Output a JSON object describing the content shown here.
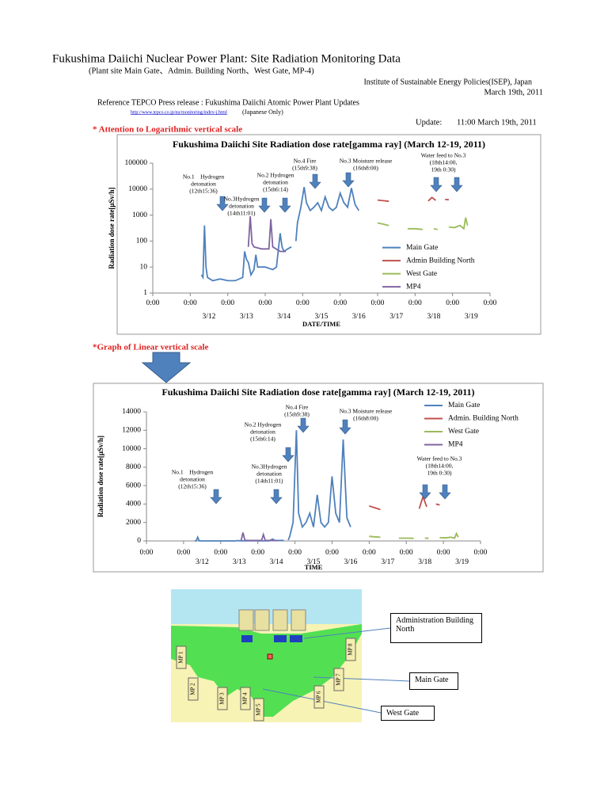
{
  "header": {
    "title": "Fukushima Daiichi Nuclear Power Plant: Site Radiation Monitoring Data",
    "subtitle": "(Plant site Main Gate、Admin. Building North、West Gate, MP-4)",
    "institute": "Institute of Sustainable Energy Policies(ISEP), Japan",
    "date": "March 19th, 2011",
    "reference": "Reference TEPCO Press release : Fukushima Daiichi Atomic Power Plant Updates",
    "link": "http://www.tepco.co.jp/nu/monitoring/index-j.html",
    "japanese_only": "(Japanese Only)",
    "update_label": "Update:",
    "update_time": "11:00 March 19th, 2011"
  },
  "notes": {
    "log_scale": "* Attention to Logarithmic vertical scale",
    "linear_scale": "*Graph of Linear vertical scale"
  },
  "chart_data": [
    {
      "type": "line",
      "title": "Fukushima Daiichi  Site Radiation dose rate[gamma ray] (March 12-19, 2011)",
      "y_label": "Radiation dose rate[μSv/h]",
      "x_label": "DATE/TIME",
      "log_y": true,
      "legend": "right",
      "xlim": [
        11,
        20
      ],
      "xticks": [
        {
          "value": 11,
          "label": "0:00"
        },
        {
          "value": 12,
          "label": "0:00"
        },
        {
          "value": 13,
          "label": "0:00"
        },
        {
          "value": 14,
          "label": "0:00"
        },
        {
          "value": 15,
          "label": "0:00"
        },
        {
          "value": 16,
          "label": "0:00"
        },
        {
          "value": 17,
          "label": "0:00"
        },
        {
          "value": 18,
          "label": "0:00"
        },
        {
          "value": 19,
          "label": "0:00"
        },
        {
          "value": 20,
          "label": "0:00"
        }
      ],
      "date_labels": [
        {
          "value": 12.5,
          "label": "3/12"
        },
        {
          "value": 13.5,
          "label": "3/13"
        },
        {
          "value": 14.5,
          "label": "3/14"
        },
        {
          "value": 15.5,
          "label": "3/15"
        },
        {
          "value": 16.5,
          "label": "3/16"
        },
        {
          "value": 17.5,
          "label": "3/17"
        },
        {
          "value": 18.5,
          "label": "3/18"
        },
        {
          "value": 19.5,
          "label": "3/19"
        }
      ],
      "ylim": [
        1,
        100000
      ],
      "yticks": [
        1,
        10,
        100,
        1000,
        10000,
        100000
      ],
      "annotations": [
        {
          "lines": [
            "No.1　Hydrogen",
            "detonation",
            "(12th15:36)"
          ]
        },
        {
          "lines": [
            "No.2 Hydrogen",
            "detonation",
            "(15th6:14)"
          ]
        },
        {
          "lines": [
            "No.3Hydrogen",
            "detonation",
            "(14th11:01)"
          ]
        },
        {
          "lines": [
            "No.4 Fire",
            "(15th9:38)"
          ]
        },
        {
          "lines": [
            "No.3 Moisture release",
            "(16th8:00)"
          ]
        },
        {
          "lines": [
            "Water feed to No.3",
            "(18th14:00,",
            "19th 0:30)"
          ]
        }
      ],
      "series": [
        {
          "name": "Main Gate",
          "color": "#4f81bd",
          "x": [
            12.3,
            12.34,
            12.38,
            12.42,
            12.46,
            12.6,
            12.8,
            13.0,
            13.2,
            13.4,
            13.45,
            13.5,
            13.55,
            13.62,
            13.7,
            13.75,
            13.8,
            14.0,
            14.2,
            14.3,
            14.4,
            14.45,
            14.5,
            14.6,
            14.7,
            14.76,
            14.82,
            14.86,
            14.95,
            15.04,
            15.1,
            15.2,
            15.3,
            15.4,
            15.5,
            15.6,
            15.7,
            15.8,
            15.9,
            16.0,
            16.1,
            16.2,
            16.3,
            16.4,
            16.5
          ],
          "values": [
            5,
            4,
            400,
            10,
            4,
            3,
            3.5,
            3,
            3,
            4,
            40,
            20,
            15,
            5,
            8,
            30,
            10,
            10,
            8,
            10,
            200,
            60,
            40,
            50,
            60,
            null,
            100,
            500,
            2000,
            12000,
            3000,
            1500,
            2000,
            3000,
            1500,
            5000,
            2000,
            1500,
            2000,
            7000,
            3000,
            2000,
            11000,
            2500,
            1500
          ]
        },
        {
          "name": "Admin Building North",
          "color": "#c0504d",
          "x": [
            17.0,
            17.15,
            17.3,
            17.6,
            18.35,
            18.45,
            18.55,
            18.65,
            18.8,
            18.9
          ],
          "values": [
            3800,
            3600,
            3400,
            null,
            3500,
            4800,
            3700,
            null,
            4000,
            3900
          ]
        },
        {
          "name": "West Gate",
          "color": "#9bbb59",
          "x": [
            17.0,
            17.15,
            17.3,
            17.5,
            17.8,
            18.0,
            18.2,
            18.35,
            18.5,
            18.6,
            18.75,
            18.9,
            19.05,
            19.2,
            19.3,
            19.35,
            19.4
          ],
          "values": [
            500,
            450,
            400,
            null,
            300,
            300,
            280,
            null,
            300,
            280,
            null,
            350,
            330,
            400,
            300,
            800,
            400
          ]
        },
        {
          "name": "MP4",
          "color": "#8064a2",
          "x": [
            13.55,
            13.6,
            13.65,
            13.7,
            13.9,
            14.1,
            14.15,
            14.2,
            14.4,
            14.55
          ],
          "values": [
            60,
            900,
            80,
            60,
            50,
            50,
            700,
            60,
            40,
            40
          ]
        }
      ]
    },
    {
      "type": "line",
      "title": "Fukushima Daiichi  Site Radiation dose rate[gamma ray] (March 12-19, 2011)",
      "y_label": "Radiation dose rate[μSv/h]",
      "x_label": "TIME",
      "log_y": false,
      "legend": "upper right",
      "xlim": [
        11,
        20
      ],
      "xticks": [
        {
          "value": 11,
          "label": "0:00"
        },
        {
          "value": 12,
          "label": "0:00"
        },
        {
          "value": 13,
          "label": "0:00"
        },
        {
          "value": 14,
          "label": "0:00"
        },
        {
          "value": 15,
          "label": "0:00"
        },
        {
          "value": 16,
          "label": "0:00"
        },
        {
          "value": 17,
          "label": "0:00"
        },
        {
          "value": 18,
          "label": "0:00"
        },
        {
          "value": 19,
          "label": "0:00"
        },
        {
          "value": 20,
          "label": "0:00"
        }
      ],
      "date_labels": [
        {
          "value": 12.5,
          "label": "3/12"
        },
        {
          "value": 13.5,
          "label": "3/13"
        },
        {
          "value": 14.5,
          "label": "3/14"
        },
        {
          "value": 15.5,
          "label": "3/15"
        },
        {
          "value": 16.5,
          "label": "3/16"
        },
        {
          "value": 17.5,
          "label": "3/17"
        },
        {
          "value": 18.5,
          "label": "3/18"
        },
        {
          "value": 19.5,
          "label": "3/19"
        }
      ],
      "ylim": [
        0,
        14000
      ],
      "yticks": [
        0,
        2000,
        4000,
        6000,
        8000,
        10000,
        12000,
        14000
      ],
      "annotations": [
        {
          "lines": [
            "No.1　Hydrogen",
            "detonation",
            "(12th15:36)"
          ]
        },
        {
          "lines": [
            "No.2 Hydrogen",
            "detonation",
            "(15th6:14)"
          ]
        },
        {
          "lines": [
            "No.3Hydrogen",
            "detonation",
            "(14th11:01)"
          ]
        },
        {
          "lines": [
            "No.4 Fire",
            "(15th9:38)"
          ]
        },
        {
          "lines": [
            "No.3 Moisture release",
            "(16th8:00)"
          ]
        },
        {
          "lines": [
            "Water feed to No.3",
            "(18th14:00,",
            "19th 0:30)"
          ]
        }
      ],
      "series": [
        {
          "name": "Main Gate",
          "color": "#4f81bd",
          "x": [
            12.3,
            12.34,
            12.38,
            12.42,
            12.46,
            12.6,
            12.8,
            13.0,
            13.2,
            13.4,
            13.45,
            13.5,
            13.55,
            13.62,
            13.7,
            13.75,
            13.8,
            14.0,
            14.2,
            14.3,
            14.4,
            14.45,
            14.5,
            14.6,
            14.7,
            14.76,
            14.82,
            14.86,
            14.95,
            15.04,
            15.1,
            15.2,
            15.3,
            15.4,
            15.5,
            15.6,
            15.7,
            15.8,
            15.9,
            16.0,
            16.1,
            16.2,
            16.3,
            16.4,
            16.5
          ],
          "values": [
            5,
            4,
            400,
            10,
            4,
            3,
            3.5,
            3,
            3,
            4,
            40,
            20,
            15,
            5,
            8,
            30,
            10,
            10,
            8,
            10,
            200,
            60,
            40,
            50,
            60,
            null,
            100,
            500,
            2000,
            12000,
            3000,
            1500,
            2000,
            3000,
            1500,
            5000,
            2000,
            1500,
            2000,
            7000,
            3000,
            2000,
            11000,
            2500,
            1500
          ]
        },
        {
          "name": "Admin. Building North",
          "color": "#c0504d",
          "x": [
            17.0,
            17.15,
            17.3,
            17.6,
            18.35,
            18.45,
            18.55,
            18.65,
            18.8,
            18.9
          ],
          "values": [
            3800,
            3600,
            3400,
            null,
            3500,
            4800,
            3700,
            null,
            4000,
            3900
          ]
        },
        {
          "name": "West Gate",
          "color": "#9bbb59",
          "x": [
            17.0,
            17.15,
            17.3,
            17.5,
            17.8,
            18.0,
            18.2,
            18.35,
            18.5,
            18.6,
            18.75,
            18.9,
            19.05,
            19.2,
            19.3,
            19.35,
            19.4
          ],
          "values": [
            500,
            450,
            400,
            null,
            300,
            300,
            280,
            null,
            300,
            280,
            null,
            350,
            330,
            400,
            300,
            800,
            400
          ]
        },
        {
          "name": "MP4",
          "color": "#8064a2",
          "x": [
            13.55,
            13.6,
            13.65,
            13.7,
            13.9,
            14.1,
            14.15,
            14.2,
            14.4,
            14.55
          ],
          "values": [
            60,
            900,
            80,
            60,
            50,
            50,
            700,
            60,
            40,
            40
          ]
        }
      ]
    }
  ],
  "map": {
    "markers": [
      "MP 1",
      "MP 2",
      "MP 3",
      "MP 4",
      "MP 5",
      "MP 6",
      "MP 7",
      "MP 8"
    ],
    "callouts": [
      "Administration Building North",
      "Main Gate",
      "West Gate"
    ]
  }
}
